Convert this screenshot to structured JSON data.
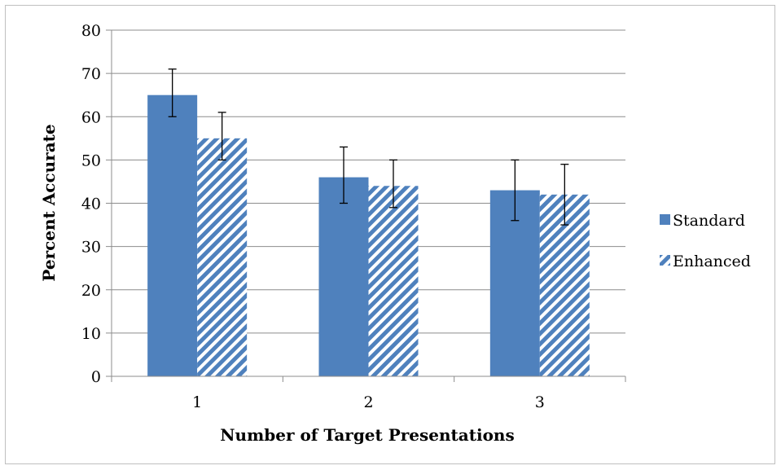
{
  "chart_data": {
    "type": "bar",
    "title": "",
    "xlabel": "Number of Target Presentations",
    "ylabel": "Percent Accurate",
    "categories": [
      "1",
      "2",
      "3"
    ],
    "ylim": [
      0,
      80
    ],
    "yticks": [
      0,
      10,
      20,
      30,
      40,
      50,
      60,
      70,
      80
    ],
    "grid": true,
    "legend_position": "right",
    "series": [
      {
        "name": "Standard",
        "values": [
          65,
          46,
          43
        ],
        "error_low": [
          60,
          40,
          36
        ],
        "error_high": [
          71,
          53,
          50
        ],
        "color": "#4f81bd",
        "pattern": "solid"
      },
      {
        "name": "Enhanced",
        "values": [
          55,
          44,
          42
        ],
        "error_low": [
          50,
          39,
          35
        ],
        "error_high": [
          61,
          50,
          49
        ],
        "color": "#4f81bd",
        "pattern": "diagonal-stripes"
      }
    ]
  }
}
